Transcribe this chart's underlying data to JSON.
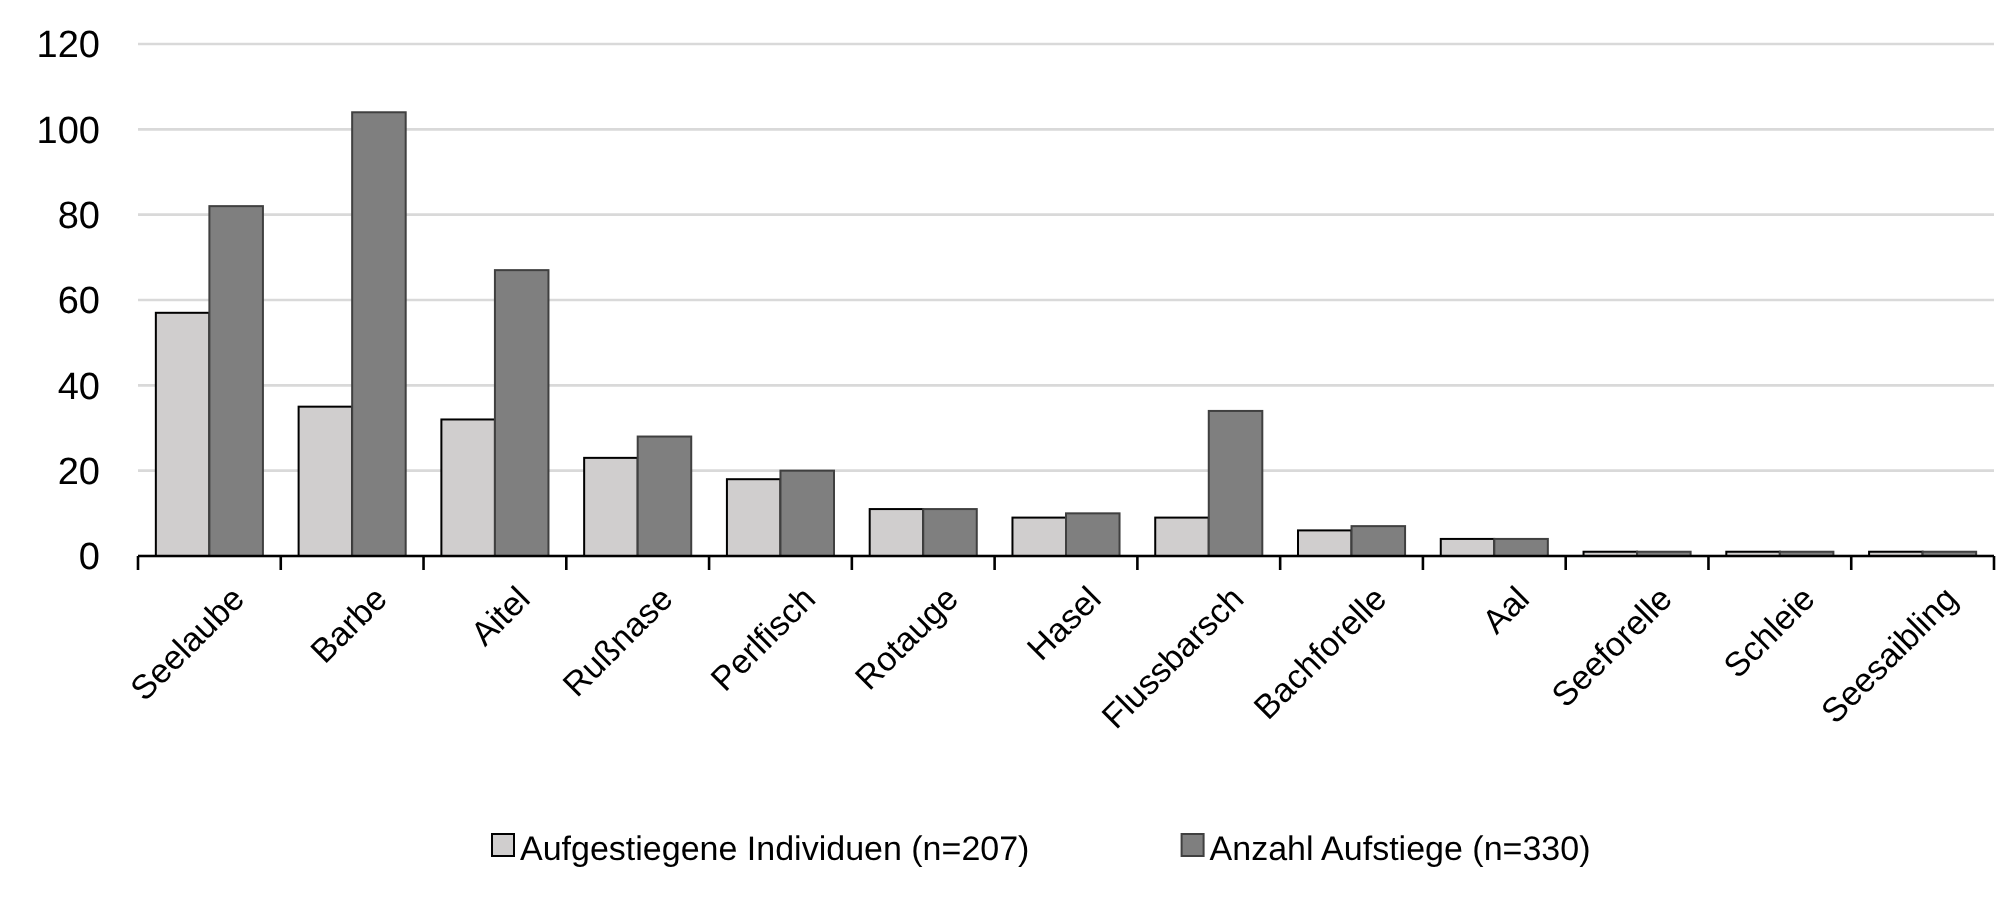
{
  "chart_data": {
    "type": "bar",
    "categories": [
      "Seelaube",
      "Barbe",
      "Aitel",
      "Rußnase",
      "Perlfisch",
      "Rotauge",
      "Hasel",
      "Flussbarsch",
      "Bachforelle",
      "Aal",
      "Seeforelle",
      "Schleie",
      "Seesaibling"
    ],
    "series": [
      {
        "name": "Aufgestiegene Individuen (n=207)",
        "color": "#d0cece",
        "values": [
          57,
          35,
          32,
          23,
          18,
          11,
          9,
          9,
          6,
          4,
          1,
          1,
          1
        ]
      },
      {
        "name": "Anzahl Aufstiege (n=330)",
        "color": "#7f7f7f",
        "values": [
          82,
          104,
          67,
          28,
          20,
          11,
          10,
          34,
          7,
          4,
          1,
          1,
          1
        ]
      }
    ],
    "ylim": [
      0,
      120
    ],
    "yticks": [
      0,
      20,
      40,
      60,
      80,
      100,
      120
    ],
    "grid": "y",
    "legend": "bottom"
  }
}
